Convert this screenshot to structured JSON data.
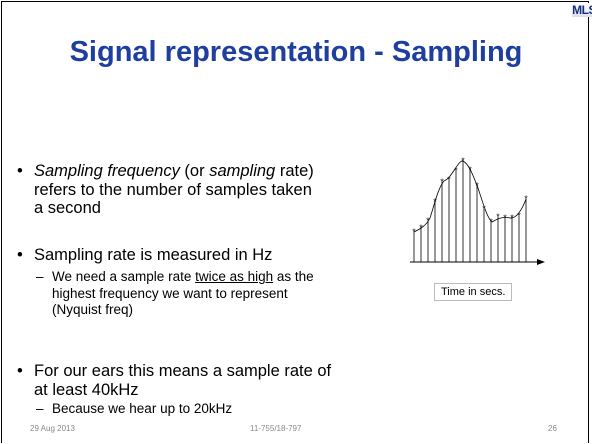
{
  "logo": "MLS",
  "title": "Signal representation - Sampling",
  "bullets": [
    {
      "parts": [
        "Sampling frequency",
        " (or ",
        "sampling",
        " rate) refers to the number of samples taken a second"
      ]
    },
    {
      "parts": [
        "Sampling rate is measured in Hz"
      ],
      "sub": [
        {
          "parts": [
            "We need a sample rate ",
            "twice as high",
            " as the highest frequency we want to represent (Nyquist freq)"
          ]
        }
      ]
    },
    {
      "parts": [
        "For our ears this means a sample rate of at least 40kHz"
      ],
      "sub": [
        {
          "parts": [
            "Because we hear up to 20kHz"
          ]
        }
      ]
    }
  ],
  "figure": {
    "caption": "Time in secs."
  },
  "footer": {
    "date": "29 Aug 2013",
    "course": "11-755/18-797",
    "page": "26"
  }
}
